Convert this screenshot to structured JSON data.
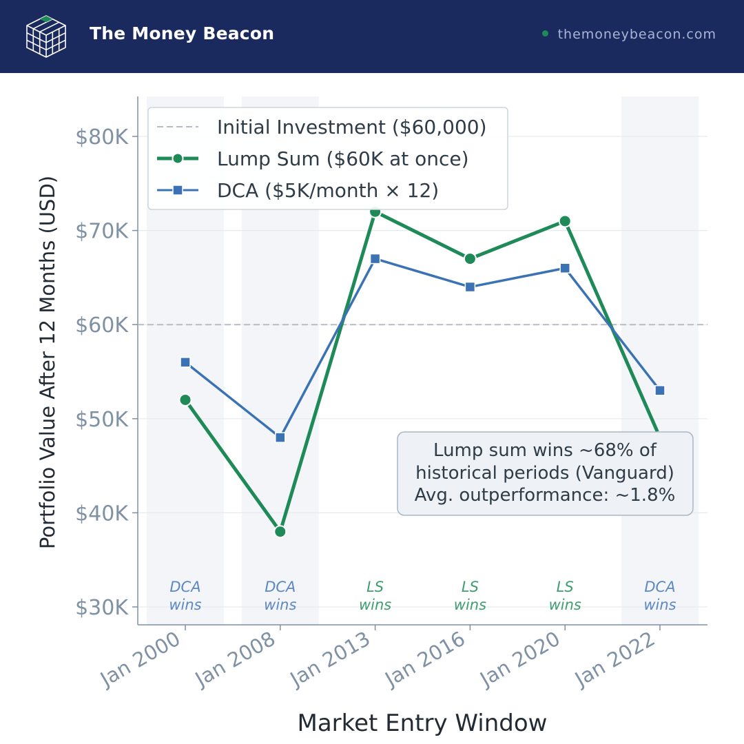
{
  "header": {
    "brand": "The Money Beacon",
    "url": "themoneybeacon.com",
    "logo_icon": "cube-grid-icon",
    "bg_color": "#1b2a5e",
    "accent_color": "#1e8a57"
  },
  "chart_data": {
    "type": "line",
    "title": "",
    "xlabel": "Market Entry Window",
    "ylabel": "Portfolio Value After 12 Months (USD)",
    "ylim": [
      30000,
      83000
    ],
    "yticks": [
      30000,
      40000,
      50000,
      60000,
      70000,
      80000
    ],
    "ytick_labels": [
      "$30K",
      "$40K",
      "$50K",
      "$60K",
      "$70K",
      "$80K"
    ],
    "categories": [
      "Jan 2000",
      "Jan 2008",
      "Jan 2013",
      "Jan 2016",
      "Jan 2020",
      "Jan 2022"
    ],
    "series": [
      {
        "name": "Lump Sum ($60K at once)",
        "color": "#1e8a57",
        "marker": "circle",
        "values": [
          52000,
          38000,
          72000,
          67000,
          71000,
          48000
        ]
      },
      {
        "name": "DCA ($5K/month × 12)",
        "color": "#3a72b4",
        "marker": "square",
        "values": [
          56000,
          48000,
          67000,
          64000,
          66000,
          53000
        ]
      }
    ],
    "reference_line": {
      "name": "Initial Investment ($60,000)",
      "value": 60000,
      "color": "#b7bcc4",
      "style": "dashed"
    },
    "winners": [
      {
        "label": [
          "DCA",
          "wins"
        ],
        "winner": "DCA",
        "shaded": true
      },
      {
        "label": [
          "DCA",
          "wins"
        ],
        "winner": "DCA",
        "shaded": true
      },
      {
        "label": [
          "LS",
          "wins"
        ],
        "winner": "LS",
        "shaded": false
      },
      {
        "label": [
          "LS",
          "wins"
        ],
        "winner": "LS",
        "shaded": false
      },
      {
        "label": [
          "LS",
          "wins"
        ],
        "winner": "LS",
        "shaded": false
      },
      {
        "label": [
          "DCA",
          "wins"
        ],
        "winner": "DCA",
        "shaded": true
      }
    ],
    "annotation": [
      "Lump sum wins ~68% of",
      "historical periods (Vanguard)",
      "Avg. outperformance: ~1.8%"
    ],
    "legend_position": "top-left",
    "grid": true
  }
}
